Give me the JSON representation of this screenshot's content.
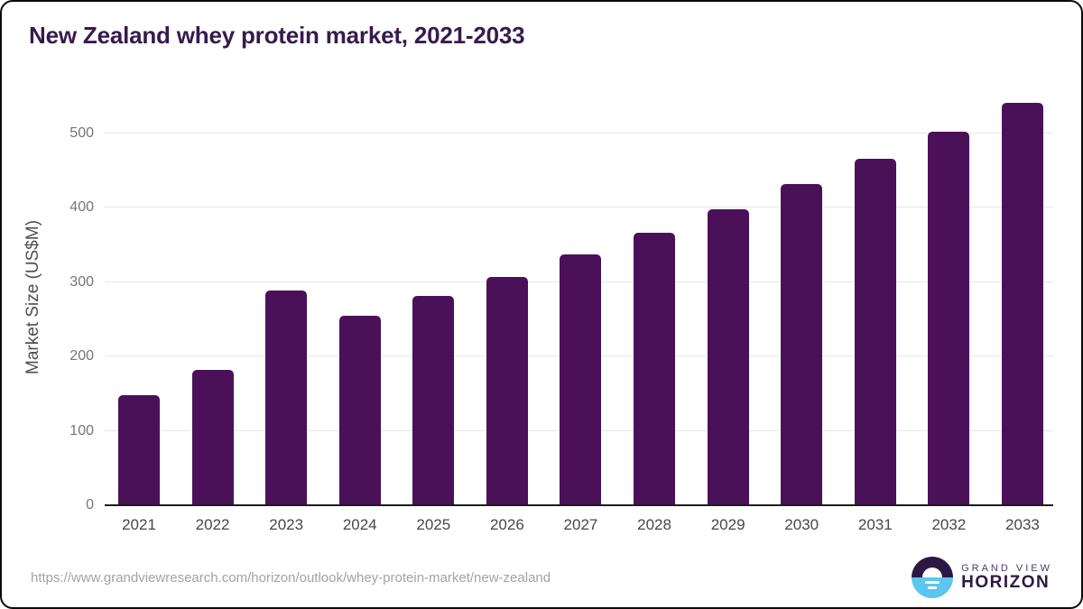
{
  "chart_data": {
    "type": "bar",
    "title": "New Zealand whey protein market, 2021-2033",
    "xlabel": "",
    "ylabel": "Market Size (US$M)",
    "categories": [
      "2021",
      "2022",
      "2023",
      "2024",
      "2025",
      "2026",
      "2027",
      "2028",
      "2029",
      "2030",
      "2031",
      "2032",
      "2033"
    ],
    "values": [
      148,
      182,
      288,
      254,
      281,
      307,
      337,
      366,
      398,
      431,
      466,
      502,
      541
    ],
    "yticks": [
      0,
      100,
      200,
      300,
      400,
      500
    ],
    "ylim": [
      0,
      560
    ],
    "grid": "horizontal",
    "legend": "none",
    "bar_color": "#4A1159",
    "title_color": "#371A4D"
  },
  "footer": {
    "source_url": "https://www.grandviewresearch.com/horizon/outlook/whey-protein-market/new-zealand",
    "logo": {
      "line1": "GRAND VIEW",
      "line2": "HORIZON",
      "mark_top_color": "#2D1843",
      "mark_bottom_color": "#5BC6F0"
    }
  }
}
